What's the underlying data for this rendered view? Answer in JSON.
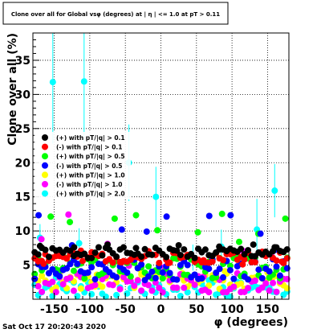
{
  "chart_data": {
    "type": "scatter",
    "title": "Clone  over all for Global vsφ (degrees) at | η | <= 1.0 at pT > 0.11",
    "xlabel": "φ (degrees)",
    "ylabel": "Clone  over all (%)",
    "xlim": [
      -180,
      180
    ],
    "ylim": [
      0,
      39
    ],
    "xticks": [
      -150,
      -100,
      -50,
      0,
      50,
      100,
      150
    ],
    "yticks": [
      5,
      10,
      15,
      20,
      25,
      30,
      35
    ],
    "grid": true,
    "legend_position": "left-middle",
    "timestamp": "Sat Oct 17 20:20:43 2020",
    "series": [
      {
        "name": "(+) with pT/|q| > 0.1",
        "color": "#000000",
        "pattern": {
          "base": 6.8,
          "amp": 0.8,
          "seed": 1
        },
        "points": [
          [
            -170,
            7.8
          ],
          [
            -122,
            7.6
          ],
          [
            -75,
            8.0
          ],
          [
            -35,
            7.5
          ],
          [
            25,
            7.9
          ],
          [
            82,
            7.7
          ],
          [
            130,
            8.0
          ],
          [
            160,
            7.6
          ]
        ]
      },
      {
        "name": "(-) with pT/|q| > 0.1",
        "color": "#ff0000",
        "pattern": {
          "base": 6.2,
          "amp": 0.9,
          "seed": 2
        },
        "points": [
          [
            -165,
            5.2
          ],
          [
            -110,
            5.6
          ],
          [
            -55,
            5.4
          ],
          [
            10,
            5.3
          ],
          [
            60,
            5.7
          ],
          [
            115,
            5.1
          ],
          [
            170,
            5.5
          ]
        ]
      },
      {
        "name": "(+) with pT/|q| > 0.5",
        "color": "#00ff00",
        "pattern": {
          "base": 4.6,
          "amp": 1.6,
          "seed": 3
        },
        "points": [
          [
            -155,
            12.1
          ],
          [
            -128,
            11.3
          ],
          [
            -65,
            11.8
          ],
          [
            -35,
            12.3
          ],
          [
            -5,
            10.1
          ],
          [
            52,
            9.8
          ],
          [
            86,
            12.5
          ],
          [
            110,
            8.4
          ],
          [
            137,
            9.6
          ],
          [
            175,
            11.8
          ]
        ]
      },
      {
        "name": "(-) with pT/|q| > 0.5",
        "color": "#0000ff",
        "pattern": {
          "base": 4.4,
          "amp": 1.6,
          "seed": 4
        },
        "points": [
          [
            -172,
            12.3
          ],
          [
            -125,
            7.9
          ],
          [
            -55,
            10.2
          ],
          [
            -20,
            9.9
          ],
          [
            8,
            12.1
          ],
          [
            68,
            12.2
          ],
          [
            98,
            12.3
          ],
          [
            140,
            9.6
          ],
          [
            160,
            7.2
          ]
        ]
      },
      {
        "name": "(+) with pT/|q| > 1.0",
        "color": "#ffff00",
        "pattern": {
          "base": 2.6,
          "amp": 1.3,
          "seed": 5
        },
        "points": [
          [
            -140,
            4.2
          ],
          [
            -90,
            3.6
          ],
          [
            -30,
            4.4
          ],
          [
            30,
            3.8
          ],
          [
            90,
            4.1
          ],
          [
            150,
            3.9
          ]
        ]
      },
      {
        "name": "(-) with pT/|q| > 1.0",
        "color": "#ff00ff",
        "pattern": {
          "base": 2.4,
          "amp": 1.4,
          "seed": 6
        },
        "points": [
          [
            -168,
            8.8
          ],
          [
            -130,
            12.4
          ],
          [
            -97,
            6.3
          ],
          [
            -75,
            8.1
          ],
          [
            -45,
            4.9
          ],
          [
            5,
            4.7
          ],
          [
            60,
            3.3
          ],
          [
            115,
            7.1
          ],
          [
            155,
            6.5
          ]
        ]
      },
      {
        "name": "(+) with pT/|q| > 2.0",
        "color": "#00ffff",
        "pattern": {
          "base": 1.9,
          "amp": 1.7,
          "seed": 7
        },
        "points": [
          [
            -152,
            31.8
          ],
          [
            -108,
            31.9
          ],
          [
            -45,
            20.0
          ],
          [
            -7,
            15.0
          ],
          [
            135,
            10.2
          ],
          [
            160,
            15.9
          ],
          [
            -170,
            9.0
          ],
          [
            -115,
            8.2
          ],
          [
            85,
            7.7
          ],
          [
            45,
            6.1
          ]
        ],
        "errors": [
          [
            -152,
            9
          ],
          [
            -108,
            9
          ],
          [
            -45,
            5.6
          ],
          [
            -7,
            4.4
          ],
          [
            135,
            4.5
          ],
          [
            160,
            3.9
          ],
          [
            -170,
            2.0
          ],
          [
            -115,
            2.2
          ],
          [
            85,
            2.5
          ],
          [
            45,
            1.9
          ]
        ]
      }
    ]
  }
}
